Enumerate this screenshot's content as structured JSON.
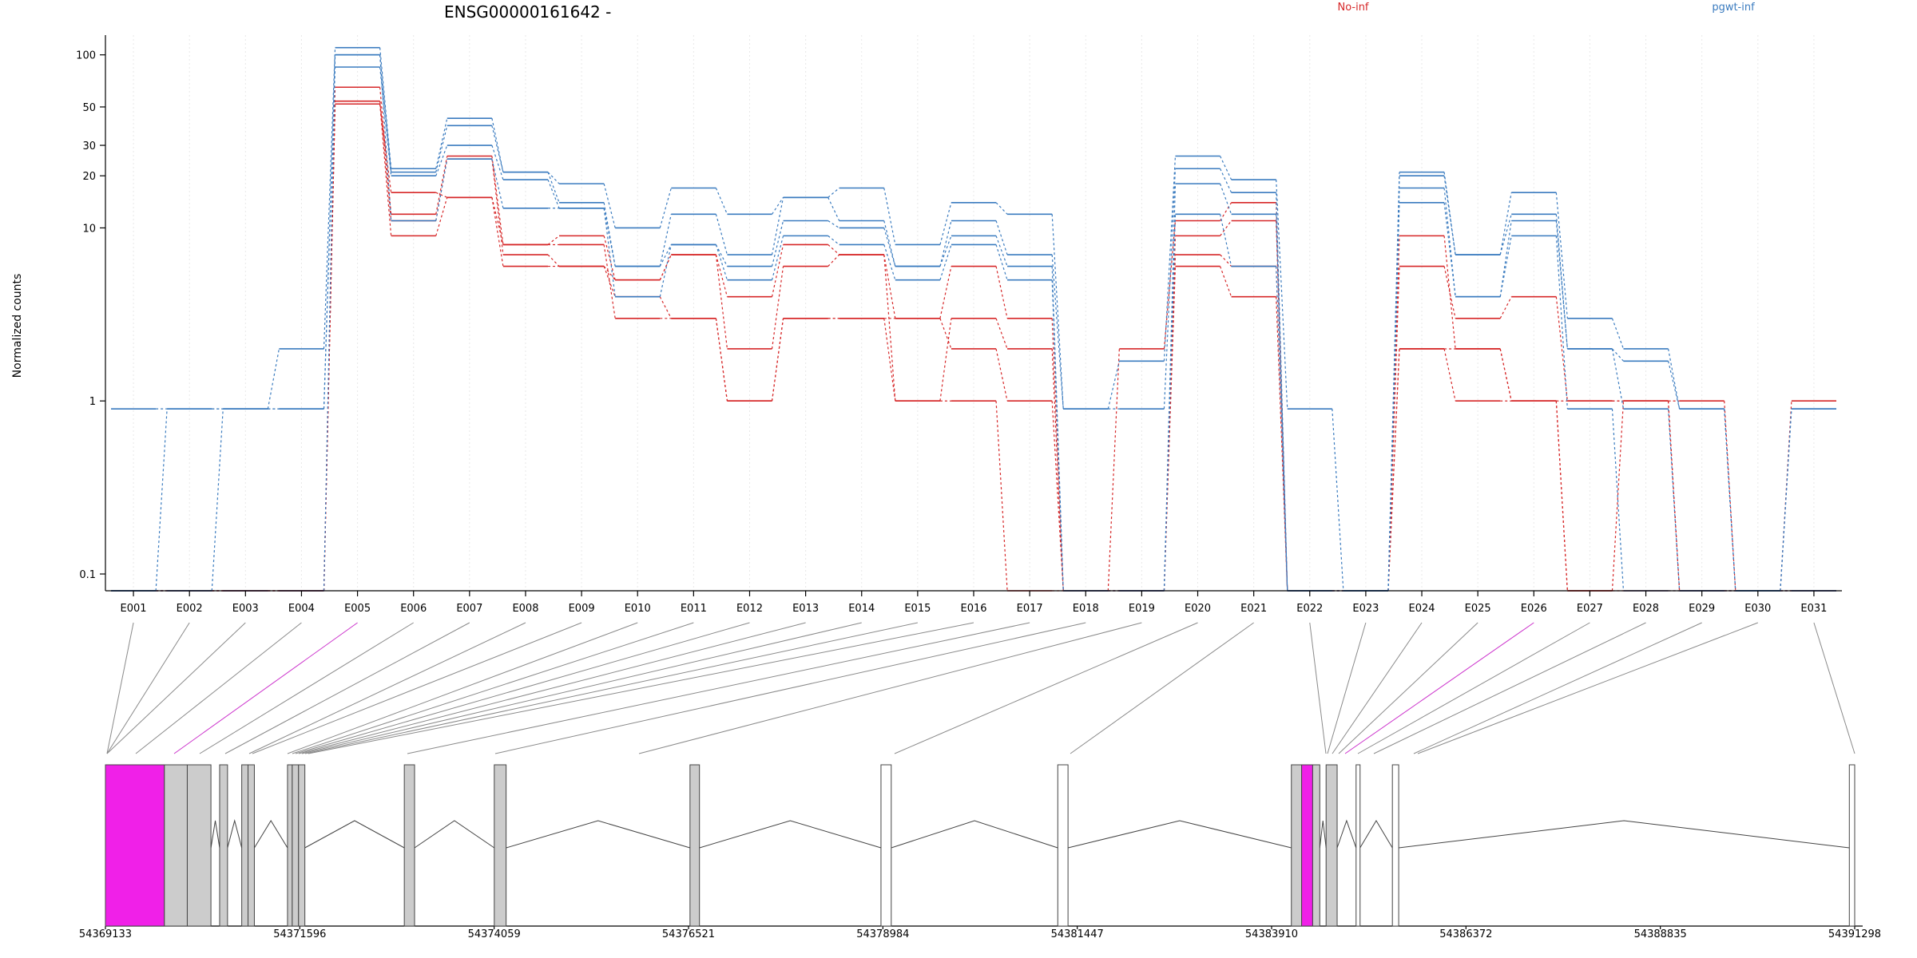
{
  "figure": {
    "title": "ENSG00000161642 -",
    "ylabel": "Normalized counts",
    "colors": {
      "No-inf": "#d62728",
      "pgwt-inf": "#3a7bbf",
      "exon_grey": "#cccccc",
      "exon_highlight": "#f020e8"
    }
  },
  "chart_data": {
    "type": "line",
    "scale": "log",
    "categories": [
      "E001",
      "E002",
      "E003",
      "E004",
      "E005",
      "E006",
      "E007",
      "E008",
      "E009",
      "E010",
      "E011",
      "E012",
      "E013",
      "E014",
      "E015",
      "E016",
      "E017",
      "E018",
      "E019",
      "E020",
      "E021",
      "E022",
      "E023",
      "E024",
      "E025",
      "E026",
      "E027",
      "E028",
      "E029",
      "E030",
      "E031"
    ],
    "yticks": [
      0.1,
      1,
      10,
      20,
      30,
      50,
      100
    ],
    "ytick_labels": [
      "0.1",
      "1",
      "10",
      "20",
      "30",
      "50",
      "100"
    ],
    "ylim": [
      0.08,
      130
    ],
    "legend": [
      {
        "name": "No-inf",
        "color": "#d62728",
        "position": "top-center"
      },
      {
        "name": "pgwt-inf",
        "color": "#3a7bbf",
        "position": "top-right"
      }
    ],
    "series": [
      {
        "group": "No-inf",
        "values": [
          0.08,
          0.08,
          0.08,
          0.08,
          65,
          12,
          26,
          8,
          9,
          5,
          7,
          4,
          8,
          7,
          3,
          6,
          3,
          0.08,
          2,
          11,
          14,
          0.08,
          0.08,
          6,
          3,
          4,
          1,
          1,
          1,
          0.08,
          1
        ]
      },
      {
        "group": "No-inf",
        "values": [
          0.08,
          0.08,
          0.08,
          0.08,
          54,
          11,
          25,
          7,
          6,
          5,
          7,
          2,
          6,
          7,
          1,
          3,
          2,
          0.08,
          0.08,
          9,
          11,
          0.08,
          0.08,
          9,
          2,
          1,
          1,
          1,
          0.08,
          0.08,
          0.08
        ]
      },
      {
        "group": "No-inf",
        "values": [
          0.08,
          0.08,
          0.08,
          0.08,
          52,
          16,
          15,
          6,
          6,
          4,
          3,
          1,
          3,
          3,
          3,
          2,
          1,
          0.08,
          0.08,
          7,
          6,
          0.08,
          0.08,
          2,
          1,
          1,
          0.08,
          0.08,
          0.08,
          0.08,
          0.08
        ]
      },
      {
        "group": "No-inf",
        "values": [
          0.08,
          0.08,
          0.08,
          0.08,
          52,
          9,
          15,
          8,
          8,
          3,
          3,
          1,
          3,
          3,
          1,
          1,
          0.08,
          0.08,
          0.08,
          6,
          4,
          0.08,
          0.08,
          2,
          2,
          1,
          0.08,
          1,
          0.08,
          0.08,
          0.08
        ]
      },
      {
        "group": "pgwt-inf",
        "values": [
          0.9,
          0.9,
          0.9,
          2,
          110,
          22,
          43,
          21,
          18,
          10,
          17,
          12,
          15,
          17,
          8,
          14,
          12,
          0.9,
          1.7,
          26,
          19,
          0.9,
          0.08,
          21,
          7,
          16,
          3,
          2,
          0.9,
          0.08,
          0.9
        ]
      },
      {
        "group": "pgwt-inf",
        "values": [
          0.08,
          0.9,
          0.9,
          0.9,
          100,
          21,
          39,
          21,
          14,
          6,
          12,
          7,
          15,
          11,
          6,
          11,
          7,
          0.9,
          0.9,
          22,
          16,
          0.08,
          0.08,
          20,
          7,
          12,
          2,
          1.7,
          0.9,
          0.08,
          0.08
        ]
      },
      {
        "group": "pgwt-inf",
        "values": [
          0.08,
          0.08,
          0.9,
          0.9,
          85,
          20,
          30,
          19,
          13,
          6,
          8,
          6,
          11,
          10,
          6,
          9,
          6,
          0.08,
          0.08,
          18,
          12,
          0.08,
          0.08,
          17,
          4,
          11,
          2,
          0.9,
          0.08,
          0.08,
          0.9
        ]
      },
      {
        "group": "pgwt-inf",
        "values": [
          0.08,
          0.08,
          0.08,
          0.08,
          100,
          11,
          25,
          13,
          13,
          4,
          8,
          5,
          9,
          8,
          5,
          8,
          5,
          0.08,
          0.08,
          12,
          6,
          0.08,
          0.08,
          14,
          4,
          9,
          0.9,
          0.08,
          0.08,
          0.08,
          0.08
        ]
      }
    ],
    "gene_model": {
      "coordinate_labels": [
        "54369133",
        "54371596",
        "54374059",
        "54376521",
        "54378984",
        "54381447",
        "54383910",
        "54386372",
        "54388835",
        "54391298"
      ],
      "range": [
        54369133,
        54391298
      ],
      "exons": [
        {
          "start": 54369133,
          "end": 54369880,
          "color": "magenta"
        },
        {
          "start": 54369880,
          "end": 54370170,
          "color": "grey"
        },
        {
          "start": 54370170,
          "end": 54370470,
          "color": "grey"
        },
        {
          "start": 54370580,
          "end": 54370680,
          "color": "grey"
        },
        {
          "start": 54370860,
          "end": 54370940,
          "color": "grey"
        },
        {
          "start": 54370940,
          "end": 54371020,
          "color": "grey"
        },
        {
          "start": 54371440,
          "end": 54371500,
          "color": "grey"
        },
        {
          "start": 54371500,
          "end": 54371580,
          "color": "grey"
        },
        {
          "start": 54371580,
          "end": 54371660,
          "color": "grey"
        },
        {
          "start": 54372920,
          "end": 54373050,
          "color": "grey"
        },
        {
          "start": 54374060,
          "end": 54374210,
          "color": "grey"
        },
        {
          "start": 54376540,
          "end": 54376660,
          "color": "grey"
        },
        {
          "start": 54378960,
          "end": 54379090,
          "color": "white"
        },
        {
          "start": 54381200,
          "end": 54381330,
          "color": "white"
        },
        {
          "start": 54384160,
          "end": 54384290,
          "color": "grey"
        },
        {
          "start": 54384290,
          "end": 54384430,
          "color": "magenta"
        },
        {
          "start": 54384430,
          "end": 54384520,
          "color": "grey"
        },
        {
          "start": 54384600,
          "end": 54384740,
          "color": "grey"
        },
        {
          "start": 54384980,
          "end": 54385030,
          "color": "white"
        },
        {
          "start": 54385440,
          "end": 54385520,
          "color": "white"
        },
        {
          "start": 54391230,
          "end": 54391298,
          "color": "white"
        }
      ]
    }
  }
}
